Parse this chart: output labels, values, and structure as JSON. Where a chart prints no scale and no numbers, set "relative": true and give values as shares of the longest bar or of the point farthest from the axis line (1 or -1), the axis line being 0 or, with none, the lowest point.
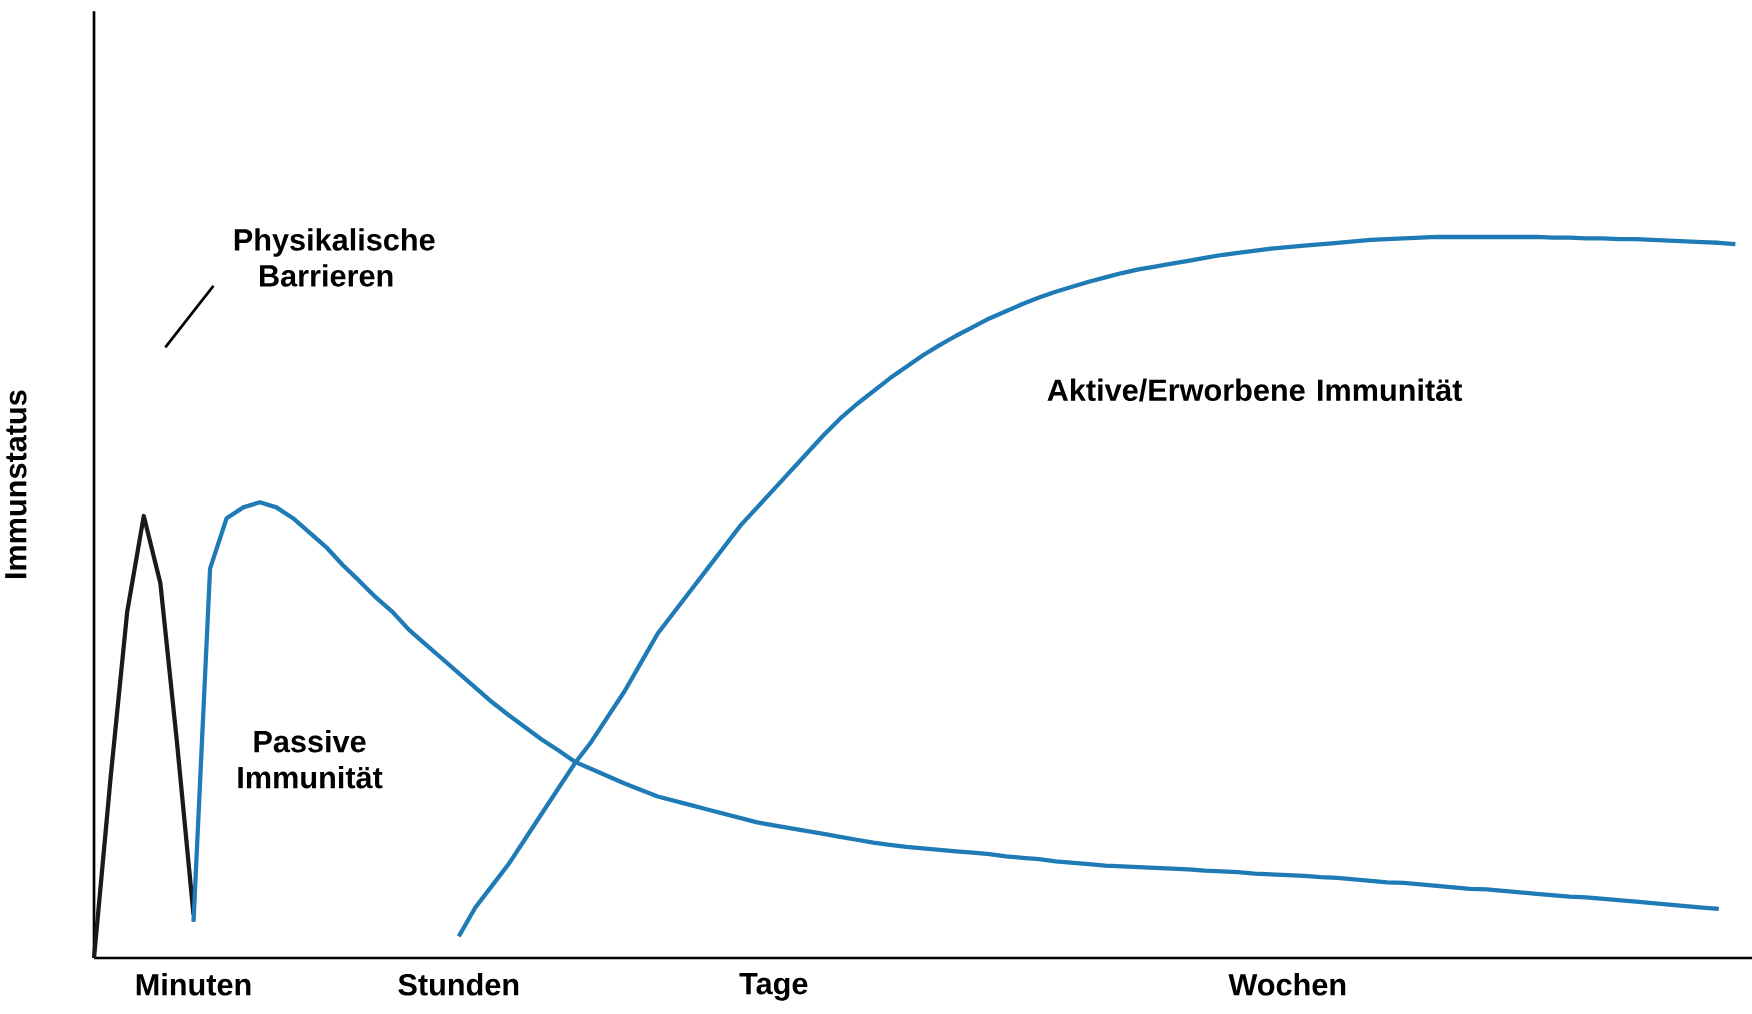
{
  "chart_data": {
    "type": "line",
    "relative": true,
    "ylabel": "Immunstatus",
    "tick_labels": "x",
    "grid": false,
    "marker": "none",
    "line_style": "solid",
    "categories": [
      null,
      null,
      null,
      null,
      null,
      null,
      "Minuten",
      null,
      null,
      null,
      null,
      null,
      null,
      null,
      null,
      null,
      null,
      null,
      null,
      null,
      null,
      null,
      "Stunden",
      null,
      null,
      null,
      null,
      null,
      null,
      null,
      null,
      null,
      null,
      null,
      null,
      null,
      null,
      null,
      null,
      null,
      null,
      "Tage",
      null,
      null,
      null,
      null,
      null,
      null,
      null,
      null,
      null,
      null,
      null,
      null,
      null,
      null,
      null,
      null,
      null,
      null,
      null,
      null,
      null,
      null,
      null,
      null,
      null,
      null,
      null,
      null,
      null,
      null,
      "Wochen",
      null,
      null,
      null,
      null,
      null,
      null,
      null,
      null,
      null,
      null,
      null,
      null,
      null,
      null,
      null,
      null,
      null,
      null,
      null,
      null,
      null,
      null,
      null,
      null,
      null,
      null,
      null,
      null
    ],
    "series": [
      {
        "color": "#1a1a1a",
        "values": [
          0,
          0.25,
          0.48,
          0.613,
          0.52,
          0.3,
          0.06,
          null,
          null,
          null,
          null,
          null,
          null,
          null,
          null,
          null,
          null,
          null,
          null,
          null,
          null,
          null,
          null,
          null,
          null,
          null,
          null,
          null,
          null,
          null,
          null,
          null,
          null,
          null,
          null,
          null,
          null,
          null,
          null,
          null,
          null,
          null,
          null,
          null,
          null,
          null,
          null,
          null,
          null,
          null,
          null,
          null,
          null,
          null,
          null,
          null,
          null,
          null,
          null,
          null,
          null,
          null,
          null,
          null,
          null,
          null,
          null,
          null,
          null,
          null,
          null,
          null,
          null,
          null,
          null,
          null,
          null,
          null,
          null,
          null,
          null,
          null,
          null,
          null,
          null,
          null,
          null,
          null,
          null,
          null,
          null,
          null,
          null,
          null,
          null,
          null,
          null,
          null,
          null,
          null,
          null
        ]
      },
      {
        "color": "#1f7bb6",
        "values": [
          null,
          null,
          null,
          null,
          null,
          null,
          0.05,
          0.54,
          0.61,
          0.625,
          0.632,
          0.625,
          0.61,
          0.59,
          0.57,
          0.545,
          0.523,
          0.5,
          0.48,
          0.455,
          0.435,
          0.415,
          0.395,
          0.375,
          0.355,
          0.337,
          0.32,
          0.303,
          0.288,
          0.272,
          0.262,
          0.252,
          0.242,
          0.233,
          0.224,
          0.218,
          0.212,
          0.206,
          0.2,
          0.194,
          0.188,
          0.184,
          0.18,
          0.176,
          0.172,
          0.168,
          0.164,
          0.16,
          0.157,
          0.154,
          0.152,
          0.15,
          0.148,
          0.146,
          0.144,
          0.141,
          0.139,
          0.137,
          0.134,
          0.132,
          0.13,
          0.128,
          0.127,
          0.126,
          0.125,
          0.124,
          0.123,
          0.121,
          0.12,
          0.119,
          0.117,
          0.116,
          0.115,
          0.114,
          0.112,
          0.111,
          0.109,
          0.107,
          0.105,
          0.104,
          0.102,
          0.1,
          0.098,
          0.096,
          0.095,
          0.093,
          0.091,
          0.089,
          0.087,
          0.085,
          0.084,
          0.082,
          0.08,
          0.078,
          0.076,
          0.074,
          0.072,
          0.07,
          0.068,
          null,
          null
        ]
      },
      {
        "color": "#1f7bb6",
        "values": [
          null,
          null,
          null,
          null,
          null,
          null,
          null,
          null,
          null,
          null,
          null,
          null,
          null,
          null,
          null,
          null,
          null,
          null,
          null,
          null,
          null,
          null,
          0.03,
          0.07,
          0.1,
          0.13,
          0.165,
          0.2,
          0.235,
          0.27,
          0.3,
          0.335,
          0.37,
          0.41,
          0.45,
          0.48,
          0.51,
          0.54,
          0.57,
          0.6,
          0.625,
          0.65,
          0.675,
          0.7,
          0.725,
          0.748,
          0.768,
          0.786,
          0.804,
          0.82,
          0.836,
          0.85,
          0.863,
          0.875,
          0.887,
          0.897,
          0.907,
          0.916,
          0.924,
          0.931,
          0.938,
          0.944,
          0.95,
          0.955,
          0.959,
          0.963,
          0.967,
          0.971,
          0.975,
          0.978,
          0.981,
          0.984,
          0.986,
          0.988,
          0.99,
          0.992,
          0.994,
          0.996,
          0.997,
          0.998,
          0.999,
          1.0,
          1.0,
          1.0,
          1.0,
          1.0,
          1.0,
          1.0,
          0.999,
          0.999,
          0.998,
          0.998,
          0.997,
          0.997,
          0.996,
          0.995,
          0.994,
          0.993,
          0.992,
          0.99,
          null
        ]
      }
    ],
    "annotations": [
      "Physikalische Barrieren",
      "Passive Immunität",
      "Aktive/Erworbene Immunität"
    ]
  }
}
